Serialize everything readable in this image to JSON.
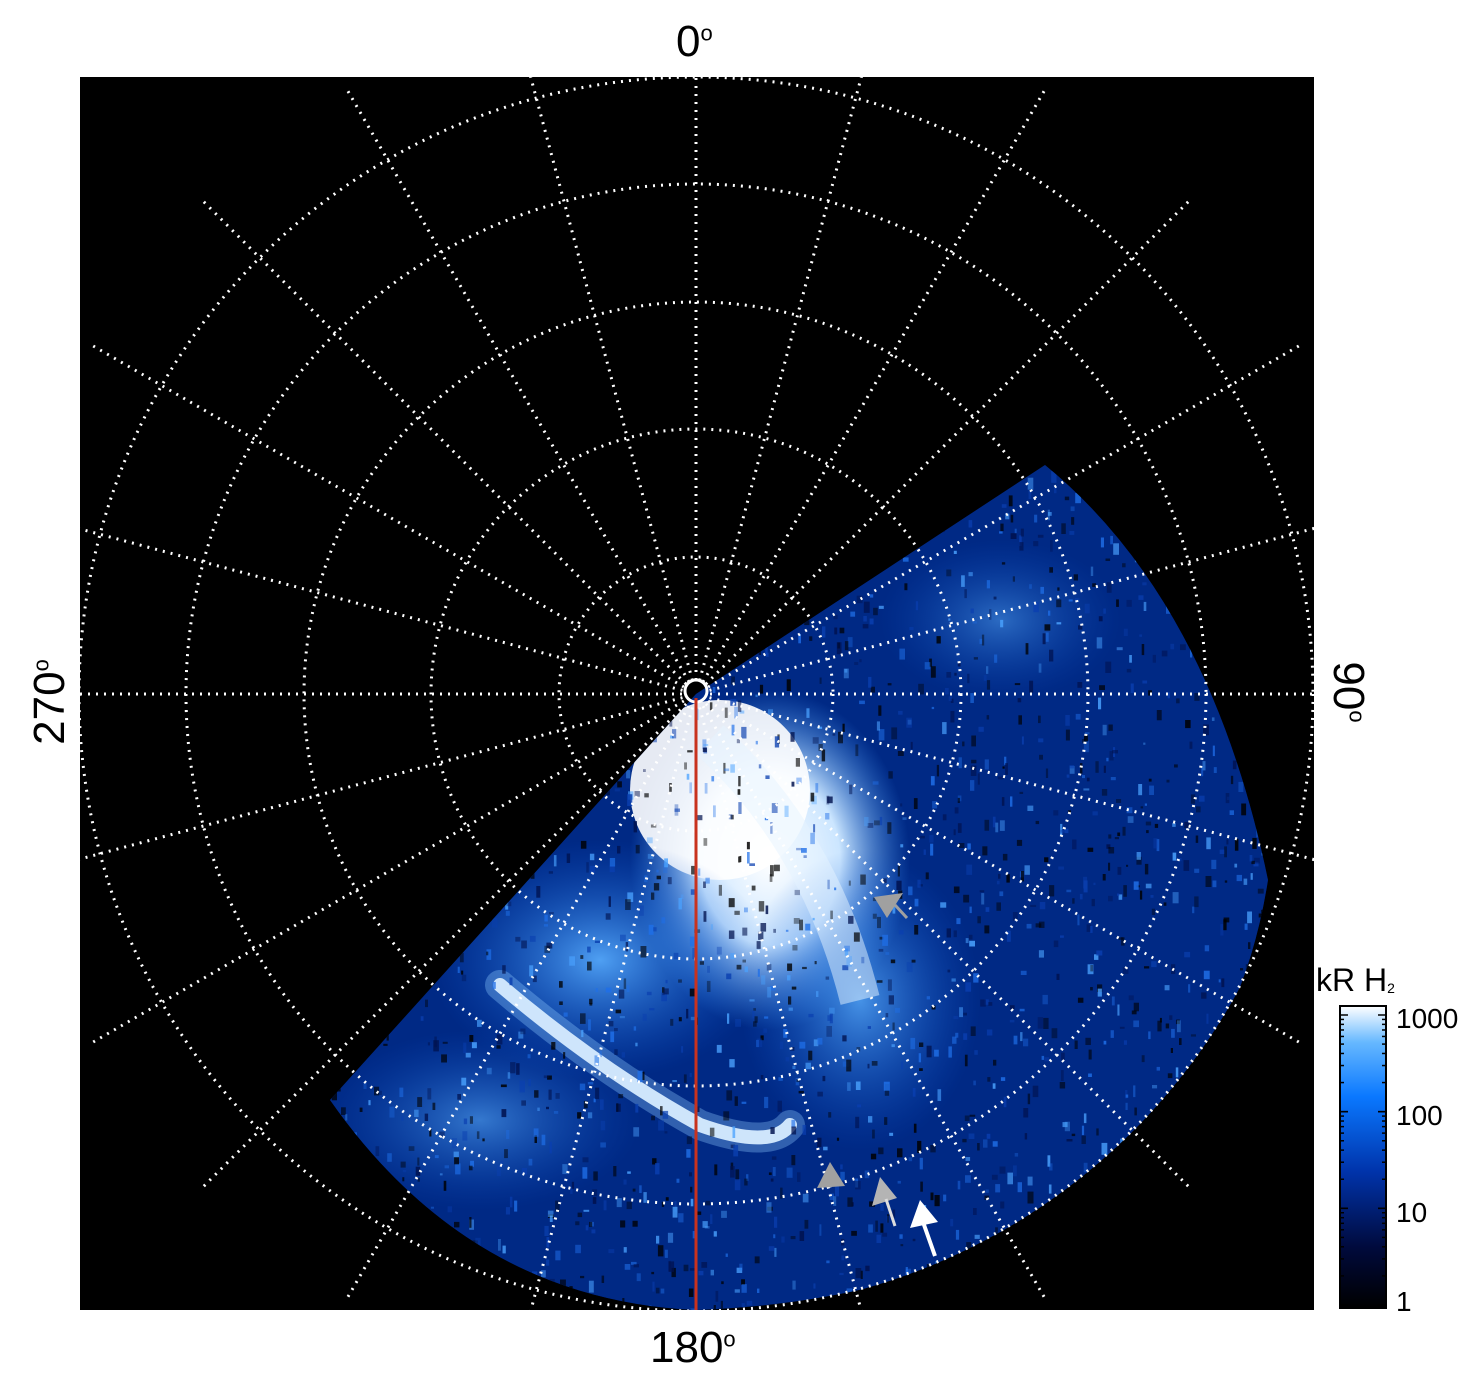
{
  "image": {
    "description_labels": {
      "top": "0",
      "bottom": "180",
      "left": "270",
      "right": "90",
      "degree_symbol": "o"
    },
    "colorbar": {
      "title": "kR H",
      "title_subscript": "2",
      "ticks": [
        "1000",
        "100",
        "10",
        "1"
      ],
      "scale": "log",
      "colors": [
        "#000000",
        "#000a3c",
        "#0033aa",
        "#0a78ff",
        "#66b8ff",
        "#ffffff"
      ]
    },
    "colors": {
      "background_panel": "#000000",
      "grid": "#ffffff",
      "meridian_line": "#c8321e",
      "arrow_gray": "#a0a0a0",
      "arrow_white": "#ffffff"
    }
  }
}
